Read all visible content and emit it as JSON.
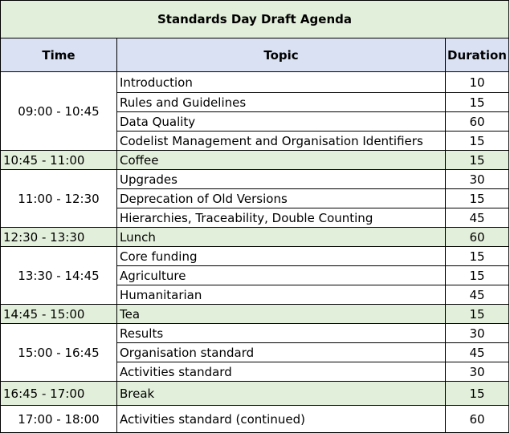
{
  "title": "Standards Day Draft Agenda",
  "headers": {
    "time": "Time",
    "topic": "Topic",
    "duration": "Duration"
  },
  "colors": {
    "title_bg": "#e2efda",
    "header_bg": "#d9e1f2",
    "break_bg": "#e2efda",
    "white": "#ffffff"
  },
  "groups": [
    {
      "time": "09:00 - 10:45",
      "highlight": false,
      "rows": [
        {
          "topic": "Introduction",
          "duration": "10"
        },
        {
          "topic": "Rules and Guidelines",
          "duration": "15"
        },
        {
          "topic": "Data Quality",
          "duration": "60"
        },
        {
          "topic": "Codelist Management and Organisation Identifiers",
          "duration": "15"
        }
      ]
    },
    {
      "time": "10:45 - 11:00",
      "highlight": true,
      "rows": [
        {
          "topic": "Coffee",
          "duration": "15"
        }
      ]
    },
    {
      "time": "11:00 - 12:30",
      "highlight": false,
      "rows": [
        {
          "topic": "Upgrades",
          "duration": "30"
        },
        {
          "topic": "Deprecation of Old Versions",
          "duration": "15"
        },
        {
          "topic": "Hierarchies, Traceability, Double Counting",
          "duration": "45"
        }
      ]
    },
    {
      "time": "12:30 - 13:30",
      "highlight": true,
      "rows": [
        {
          "topic": "Lunch",
          "duration": "60"
        }
      ]
    },
    {
      "time": "13:30 - 14:45",
      "highlight": false,
      "rows": [
        {
          "topic": "Core funding",
          "duration": "15"
        },
        {
          "topic": "Agriculture",
          "duration": "15"
        },
        {
          "topic": "Humanitarian",
          "duration": "45"
        }
      ]
    },
    {
      "time": "14:45 - 15:00",
      "highlight": true,
      "rows": [
        {
          "topic": "Tea",
          "duration": "15"
        }
      ]
    },
    {
      "time": "15:00 - 16:45",
      "highlight": false,
      "rows": [
        {
          "topic": "Results",
          "duration": "30"
        },
        {
          "topic": "Organisation standard",
          "duration": "45"
        },
        {
          "topic": "Activities standard",
          "duration": "30"
        }
      ]
    },
    {
      "time": "16:45 - 17:00",
      "highlight": true,
      "rows": [
        {
          "topic": "Break",
          "duration": "15"
        }
      ]
    },
    {
      "time": "17:00 - 18:00",
      "highlight": false,
      "rows": [
        {
          "topic": "Activities standard (continued)",
          "duration": "60"
        }
      ]
    }
  ]
}
